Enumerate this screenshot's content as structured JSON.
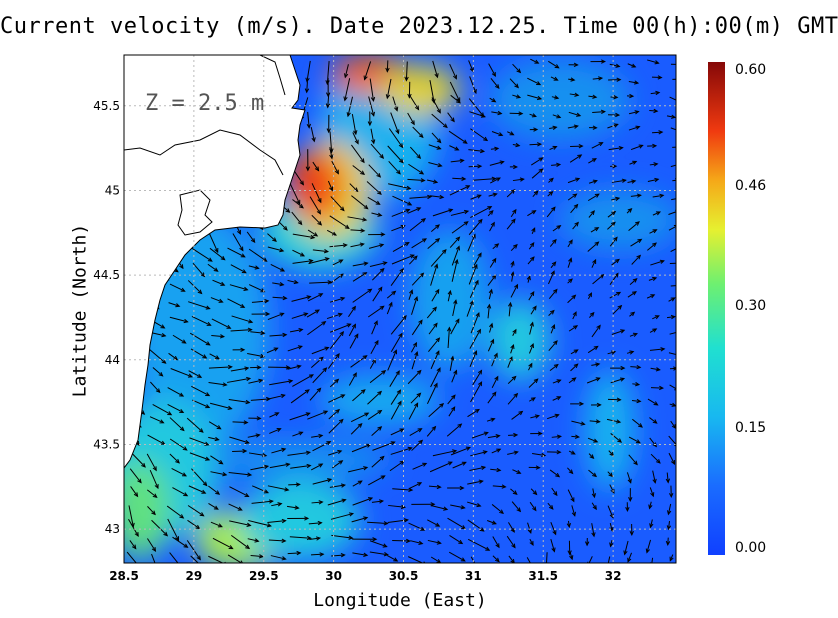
{
  "title": "Current velocity (m/s). Date 2023.12.25. Time 00(h):00(m) GMT",
  "depth_label": "Z = 2.5 m",
  "xlabel": "Longitude (East)",
  "ylabel": "Latitude (North)",
  "x_ticks": [
    "28.5",
    "29",
    "29.5",
    "30",
    "30.5",
    "31",
    "31.5",
    "32"
  ],
  "y_ticks": [
    "45.5",
    "45",
    "44.5",
    "44",
    "43.5",
    "43"
  ],
  "colorbar": {
    "ticks": [
      "0.60",
      "0.46",
      "0.30",
      "0.15",
      "0.00"
    ],
    "min": 0.0,
    "max": 0.6,
    "colors": [
      "#0a3cff",
      "#1a8cff",
      "#18d8e8",
      "#3de68c",
      "#d6f03a",
      "#f5c020",
      "#ff6a00",
      "#e02010",
      "#8b0a0a"
    ]
  },
  "map": {
    "lon_range": [
      28.5,
      32.45
    ],
    "lat_range": [
      42.8,
      45.8
    ],
    "land_color": "#ffffff",
    "sea_base_color": "#1a5cff"
  }
}
